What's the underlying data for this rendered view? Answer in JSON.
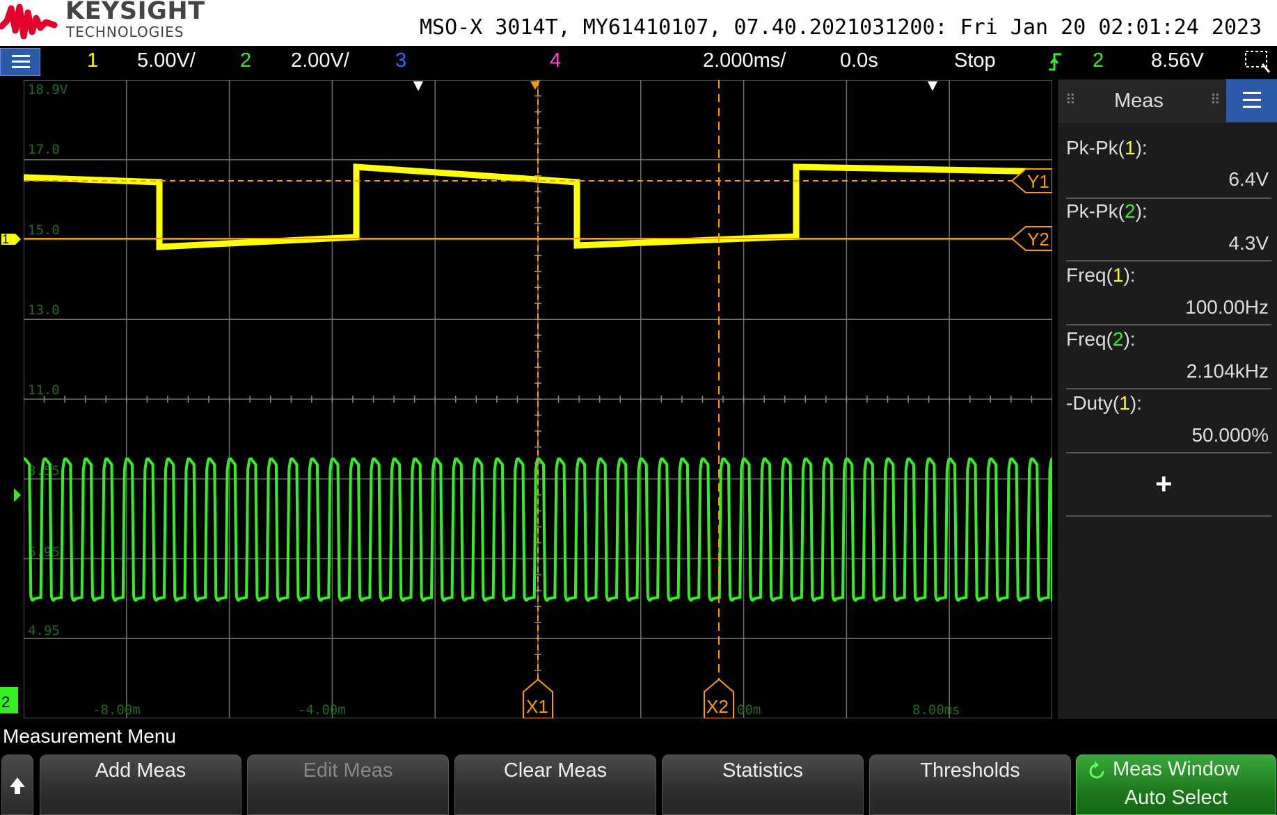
{
  "header": {
    "brand": "KEYSIGHT",
    "brand_sub": "TECHNOLOGIES",
    "instrument_info": "MSO-X 3014T, MY61410107, 07.40.2021031200: Fri Jan 20 02:01:24 2023"
  },
  "status": {
    "ch1_label": "1",
    "ch1_scale": "5.00V/",
    "ch2_label": "2",
    "ch2_scale": "2.00V/",
    "ch3_label": "3",
    "ch4_label": "4",
    "timebase": "2.000ms/",
    "delay": "0.0s",
    "run_state": "Stop",
    "trigger_source": "2",
    "trigger_level": "8.56V"
  },
  "colors": {
    "ch1": "#ffff00",
    "ch2": "#33ee22",
    "ch3": "#3366ff",
    "ch4": "#ff44cc",
    "cursor": "#ff9900",
    "grid": "#7a7a7a"
  },
  "screen": {
    "ch1_grid_labels": [
      "18.9V",
      "17.0",
      "15.0",
      "13.0",
      "11.0"
    ],
    "ch2_grid_labels": [
      "8.55",
      "6.95",
      "4.95"
    ],
    "time_labels": [
      "-8.00m",
      "-4.00m",
      "00m",
      "8.00ms"
    ],
    "cursor_x1": "X1",
    "cursor_x2": "X2",
    "cursor_y1": "Y1",
    "cursor_y2": "Y2",
    "ch1_marker": "1",
    "ch2_marker": "2"
  },
  "meas_panel": {
    "title": "Meas",
    "items": [
      {
        "label_prefix": "Pk-Pk(",
        "channel": "1",
        "label_suffix": "):",
        "value": "6.4V"
      },
      {
        "label_prefix": "Pk-Pk(",
        "channel": "2",
        "label_suffix": "):",
        "value": "4.3V"
      },
      {
        "label_prefix": "Freq(",
        "channel": "1",
        "label_suffix": "):",
        "value": "100.00Hz"
      },
      {
        "label_prefix": "Freq(",
        "channel": "2",
        "label_suffix": "):",
        "value": "2.104kHz"
      },
      {
        "label_prefix": "-Duty(",
        "channel": "1",
        "label_suffix": "):",
        "value": "50.000%"
      }
    ],
    "add_symbol": "+"
  },
  "menu": {
    "title": "Measurement Menu",
    "softkeys": [
      {
        "label": "Add Meas"
      },
      {
        "label": "Edit Meas"
      },
      {
        "label": "Clear Meas"
      },
      {
        "label": "Statistics"
      },
      {
        "label": "Thresholds"
      },
      {
        "label": "Meas Window",
        "label2": "Auto Select"
      }
    ]
  }
}
